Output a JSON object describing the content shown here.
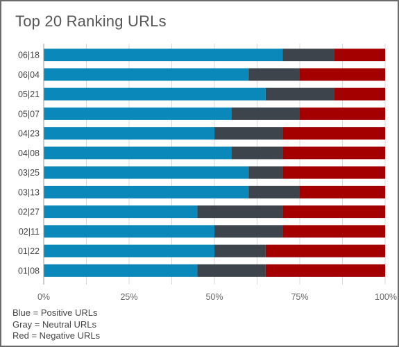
{
  "title": "Top 20 Ranking URLs",
  "legend_notes": [
    "Blue = Positive URLs",
    "Gray = Neutral URLs",
    "Red = Negative URLs"
  ],
  "colors": {
    "positive": "#0a88b9",
    "neutral": "#3e444c",
    "negative": "#a50000",
    "grid": "#d9d9d9",
    "axis": "#999999"
  },
  "chart_data": {
    "type": "bar",
    "orientation": "horizontal",
    "stacked": true,
    "categories": [
      "06|18",
      "06|04",
      "05|21",
      "05|07",
      "04|23",
      "04|08",
      "03|25",
      "03|13",
      "02|27",
      "02|11",
      "01|22",
      "01|08"
    ],
    "series": [
      {
        "values": [
          70,
          60,
          65,
          55,
          50,
          55,
          60,
          60,
          45,
          50,
          50,
          45
        ]
      },
      {
        "values": [
          15,
          15,
          20,
          20,
          20,
          15,
          10,
          15,
          25,
          20,
          15,
          20
        ]
      },
      {
        "values": [
          15,
          25,
          15,
          25,
          30,
          30,
          30,
          25,
          30,
          30,
          35,
          35
        ]
      }
    ],
    "xlim": [
      0,
      100
    ],
    "x_ticks": [
      "0%",
      "25%",
      "50%",
      "75%",
      "100%"
    ],
    "grid": true,
    "legend": "none"
  }
}
